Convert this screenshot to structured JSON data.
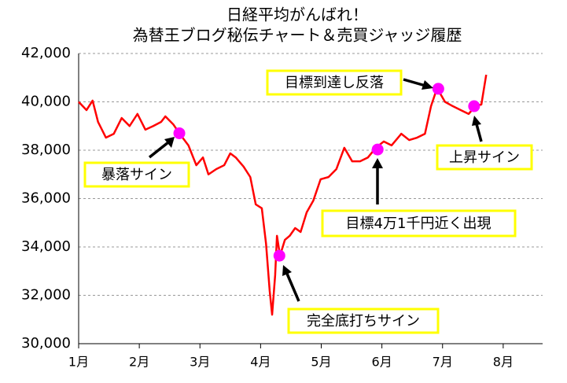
{
  "chart_data": {
    "type": "line",
    "title": "日経平均がんばれ！",
    "subtitle": "為替王ブログ秘伝チャート＆売買ジャッジ履歴",
    "xlim": [
      1,
      8.65
    ],
    "xticks": [
      {
        "value": 1,
        "label": "1月"
      },
      {
        "value": 2,
        "label": "2月"
      },
      {
        "value": 3,
        "label": "3月"
      },
      {
        "value": 4,
        "label": "4月"
      },
      {
        "value": 5,
        "label": "5月"
      },
      {
        "value": 6,
        "label": "6月"
      },
      {
        "value": 7,
        "label": "7月"
      },
      {
        "value": 8,
        "label": "8月"
      }
    ],
    "ylim": [
      30000,
      42000
    ],
    "yticks": [
      {
        "value": 30000,
        "label": "30,000"
      },
      {
        "value": 32000,
        "label": "32,000"
      },
      {
        "value": 34000,
        "label": "34,000"
      },
      {
        "value": 36000,
        "label": "36,000"
      },
      {
        "value": 38000,
        "label": "38,000"
      },
      {
        "value": 40000,
        "label": "40,000"
      },
      {
        "value": 42000,
        "label": "42,000"
      }
    ],
    "grid": true,
    "series": [
      {
        "color": "#ff0000",
        "x": [
          1.0,
          1.13,
          1.23,
          1.32,
          1.45,
          1.58,
          1.71,
          1.84,
          1.97,
          2.1,
          2.23,
          2.36,
          2.43,
          2.56,
          2.66,
          2.81,
          2.94,
          3.05,
          3.14,
          3.27,
          3.4,
          3.5,
          3.59,
          3.72,
          3.83,
          3.92,
          4.02,
          4.09,
          4.15,
          4.19,
          4.24,
          4.27,
          4.32,
          4.4,
          4.48,
          4.57,
          4.66,
          4.76,
          4.87,
          4.99,
          5.12,
          5.25,
          5.38,
          5.51,
          5.64,
          5.77,
          5.9,
          6.03,
          6.16,
          6.32,
          6.45,
          6.58,
          6.71,
          6.81,
          6.91,
          7.04,
          7.17,
          7.3,
          7.43,
          7.54,
          7.64,
          7.72
        ],
        "values": [
          40000,
          39660,
          40050,
          39170,
          38520,
          38680,
          39330,
          39000,
          39500,
          38850,
          39000,
          39170,
          39400,
          39070,
          38700,
          38200,
          37380,
          37700,
          37000,
          37220,
          37380,
          37870,
          37700,
          37320,
          36890,
          35760,
          35600,
          34130,
          32180,
          31200,
          32830,
          34460,
          33640,
          34290,
          34460,
          34780,
          34620,
          35430,
          35920,
          36800,
          36890,
          37220,
          38100,
          37540,
          37540,
          37700,
          38100,
          38360,
          38200,
          38680,
          38420,
          38520,
          38680,
          39820,
          40570,
          40000,
          39820,
          39660,
          39500,
          39820,
          39890,
          41120
        ]
      }
    ],
    "markers": {
      "color": "#ff00ff",
      "x": [
        2.66,
        4.31,
        5.93,
        6.93,
        7.52
      ],
      "values": [
        38700,
        33640,
        38030,
        40540,
        39820
      ]
    },
    "annotations": [
      "目標到達し反落",
      "暴落サイン",
      "上昇サイン",
      "目標4万1千円近く出現",
      "完全底打ちサイン"
    ]
  }
}
